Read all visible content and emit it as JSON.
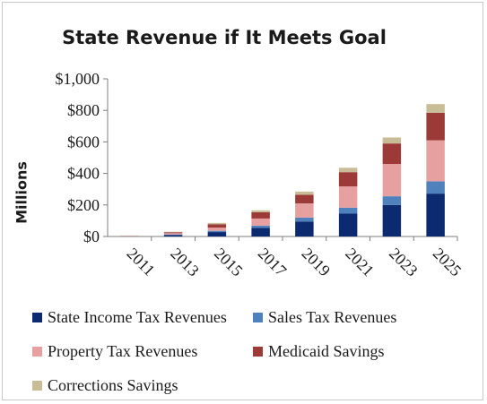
{
  "chart_data": {
    "type": "bar",
    "stacked": true,
    "title": "State Revenue if It Meets Goal",
    "ylabel": "Millions",
    "xlabel": "",
    "ylim": [
      0,
      1000
    ],
    "yticks": [
      "$0",
      "$200",
      "$400",
      "$600",
      "$800",
      "$1,000"
    ],
    "yticks_values": [
      0,
      200,
      400,
      600,
      800,
      1000
    ],
    "grid": false,
    "legend_position": "bottom",
    "categories": [
      "2011",
      "2013",
      "2015",
      "2017",
      "2019",
      "2021",
      "2023",
      "2025"
    ],
    "series": [
      {
        "name": "State Income Tax Revenues",
        "color": "#0b2a6f",
        "values": [
          1,
          10,
          28,
          55,
          95,
          145,
          200,
          272
        ]
      },
      {
        "name": "Sales Tax Revenues",
        "color": "#4f81bd",
        "values": [
          0,
          3,
          8,
          14,
          25,
          38,
          55,
          78
        ]
      },
      {
        "name": "Property Tax Revenues",
        "color": "#e6a0a0",
        "values": [
          1,
          8,
          20,
          45,
          90,
          135,
          205,
          260
        ]
      },
      {
        "name": "Medicaid Savings",
        "color": "#9b3a36",
        "values": [
          1,
          6,
          22,
          40,
          55,
          90,
          130,
          175
        ]
      },
      {
        "name": "Corrections Savings",
        "color": "#c9bd98",
        "values": [
          1,
          3,
          8,
          12,
          20,
          28,
          38,
          55
        ]
      }
    ]
  }
}
